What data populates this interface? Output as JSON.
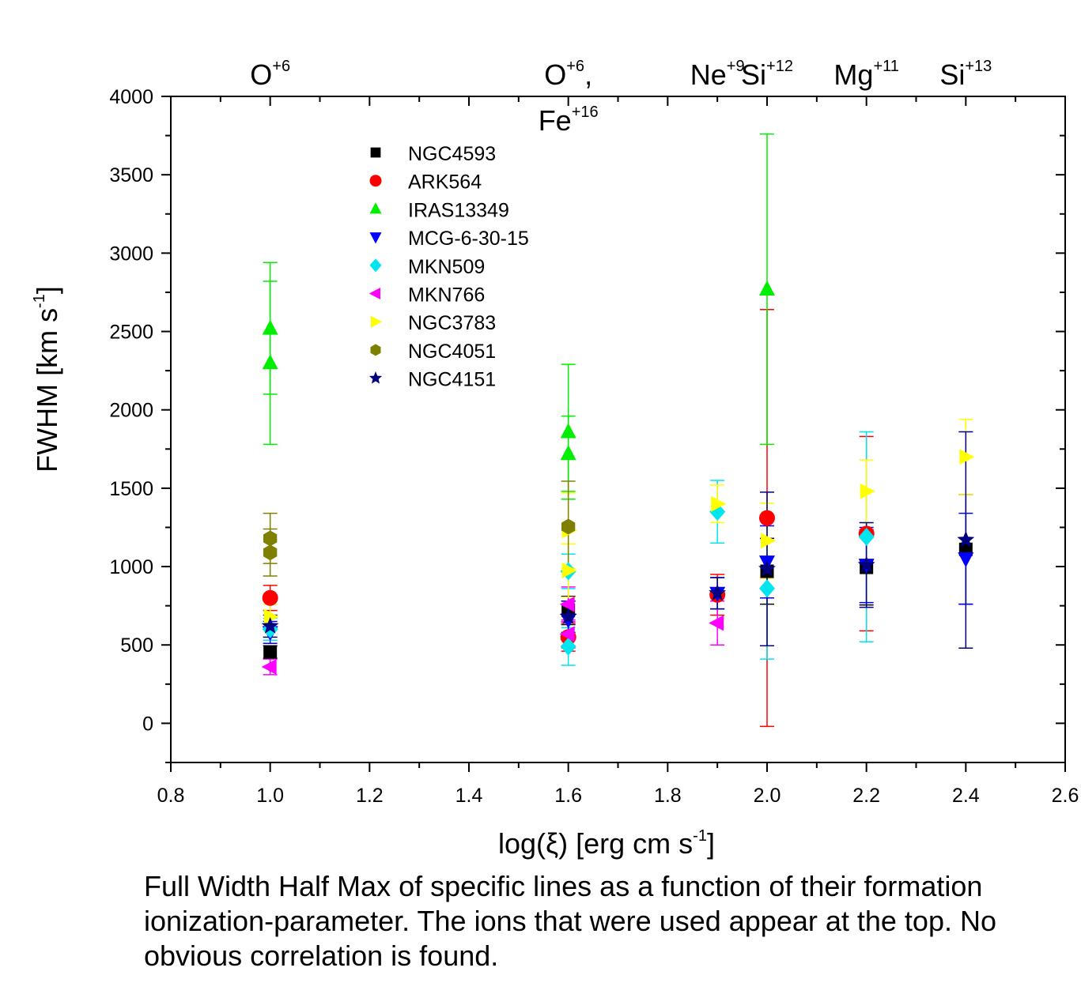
{
  "chart_data": {
    "type": "scatter",
    "xlabel": {
      "prefix": "log(ξ) [erg cm s",
      "sup": "-1",
      "suffix": "]"
    },
    "ylabel": {
      "prefix": "FWHM [km s",
      "sup": "-1",
      "suffix": "]"
    },
    "xlim": [
      0.8,
      2.6
    ],
    "ylim": [
      -250,
      4000
    ],
    "x_ticks": [
      0.8,
      1.0,
      1.2,
      1.4,
      1.6,
      1.8,
      2.0,
      2.2,
      2.4,
      2.6
    ],
    "x_tick_labels": [
      "0.8",
      "1.0",
      "1.2",
      "1.4",
      "1.6",
      "1.8",
      "2.0",
      "2.2",
      "2.4",
      "2.6"
    ],
    "y_ticks": [
      0,
      500,
      1000,
      1500,
      2000,
      2500,
      3000,
      3500,
      4000
    ],
    "y_tick_labels": [
      "0",
      "500",
      "1000",
      "1500",
      "2000",
      "2500",
      "3000",
      "3500",
      "4000"
    ],
    "grid": false,
    "legend_position": "top-left",
    "ion_labels": [
      {
        "x": 1.0,
        "lines": [
          {
            "base": "O",
            "sup": "+6"
          }
        ]
      },
      {
        "x": 1.6,
        "lines": [
          {
            "base": "O",
            "sup": "+6",
            "after": ","
          },
          {
            "base": "Fe",
            "sup": "+16"
          }
        ]
      },
      {
        "x": 1.9,
        "lines": [
          {
            "base": "Ne",
            "sup": "+9"
          }
        ]
      },
      {
        "x": 2.0,
        "lines": [
          {
            "base": "Si",
            "sup": "+12"
          }
        ]
      },
      {
        "x": 2.2,
        "lines": [
          {
            "base": "Mg",
            "sup": "+11"
          }
        ]
      },
      {
        "x": 2.4,
        "lines": [
          {
            "base": "Si",
            "sup": "+13"
          }
        ]
      }
    ],
    "series": [
      {
        "name": "NGC4593",
        "marker": "square",
        "color": "#000000",
        "points": [
          {
            "x": 1.0,
            "y": 455,
            "err": 40
          },
          {
            "x": 1.6,
            "y": 720,
            "err": 90
          },
          {
            "x": 2.0,
            "y": 970,
            "err": 210
          },
          {
            "x": 2.2,
            "y": 995,
            "err": 240
          },
          {
            "x": 2.4,
            "y": 1110,
            "err": 350
          }
        ]
      },
      {
        "name": "ARK564",
        "marker": "circle",
        "color": "#ff0000",
        "points": [
          {
            "x": 1.0,
            "y": 800,
            "err": 80
          },
          {
            "x": 1.6,
            "y": 550,
            "err": 90
          },
          {
            "x": 1.9,
            "y": 820,
            "err": 130
          },
          {
            "x": 2.0,
            "y": 1310,
            "err": 1330
          },
          {
            "x": 2.2,
            "y": 1210,
            "err": 620
          }
        ]
      },
      {
        "name": "IRAS13349",
        "marker": "triangle-up",
        "color": "#00ee00",
        "points": [
          {
            "x": 1.0,
            "y": 2520,
            "err": 420
          },
          {
            "x": 1.0,
            "y": 2300,
            "err": 520
          },
          {
            "x": 1.6,
            "y": 1860,
            "err": 430
          },
          {
            "x": 1.6,
            "y": 1720,
            "err": 240
          },
          {
            "x": 2.0,
            "y": 2770,
            "err": 990
          }
        ]
      },
      {
        "name": "MCG-6-30-15",
        "marker": "triangle-down",
        "color": "#0000ff",
        "points": [
          {
            "x": 1.0,
            "y": 580,
            "err": 70
          },
          {
            "x": 1.6,
            "y": 660,
            "err": 120
          },
          {
            "x": 1.9,
            "y": 830,
            "err": 100
          },
          {
            "x": 2.0,
            "y": 1030,
            "err": 230
          },
          {
            "x": 2.2,
            "y": 1010,
            "err": 240
          },
          {
            "x": 2.4,
            "y": 1050,
            "err": 290
          }
        ]
      },
      {
        "name": "MKN509",
        "marker": "diamond",
        "color": "#00e5ee",
        "points": [
          {
            "x": 1.0,
            "y": 600,
            "err": 70
          },
          {
            "x": 1.6,
            "y": 490,
            "err": 120
          },
          {
            "x": 1.6,
            "y": 970,
            "err": 110
          },
          {
            "x": 1.9,
            "y": 1350,
            "err": 200
          },
          {
            "x": 2.0,
            "y": 860,
            "err": 450
          },
          {
            "x": 2.2,
            "y": 1190,
            "err": 670
          }
        ]
      },
      {
        "name": "MKN766",
        "marker": "triangle-left",
        "color": "#ff00ff",
        "points": [
          {
            "x": 1.0,
            "y": 360,
            "err": 50
          },
          {
            "x": 1.6,
            "y": 760,
            "err": 110
          },
          {
            "x": 1.6,
            "y": 570,
            "err": 90
          },
          {
            "x": 1.9,
            "y": 640,
            "err": 140
          }
        ]
      },
      {
        "name": "NGC3783",
        "marker": "triangle-right",
        "color": "#ffff00",
        "points": [
          {
            "x": 1.0,
            "y": 680,
            "err": 80
          },
          {
            "x": 1.6,
            "y": 1230,
            "err": 240
          },
          {
            "x": 1.6,
            "y": 975,
            "err": 170
          },
          {
            "x": 1.9,
            "y": 1400,
            "err": 120
          },
          {
            "x": 2.0,
            "y": 1165,
            "err": 240
          },
          {
            "x": 2.2,
            "y": 1480,
            "err": 200
          },
          {
            "x": 2.4,
            "y": 1700,
            "err": 240
          }
        ]
      },
      {
        "name": "NGC4051",
        "marker": "hexagon",
        "color": "#808000",
        "points": [
          {
            "x": 1.0,
            "y": 1180,
            "err": 160
          },
          {
            "x": 1.0,
            "y": 1090,
            "err": 150
          },
          {
            "x": 1.6,
            "y": 1255,
            "err": 290
          }
        ]
      },
      {
        "name": "NGC4151",
        "marker": "star",
        "color": "#000080",
        "points": [
          {
            "x": 1.0,
            "y": 620,
            "err": 70
          },
          {
            "x": 1.6,
            "y": 680,
            "err": 100
          },
          {
            "x": 1.9,
            "y": 830,
            "err": 100
          },
          {
            "x": 2.0,
            "y": 985,
            "err": 490
          },
          {
            "x": 2.2,
            "y": 1010,
            "err": 270
          },
          {
            "x": 2.4,
            "y": 1170,
            "err": 690
          }
        ]
      }
    ]
  },
  "caption": "Full Width Half Max of specific lines as a function of their formation ionization-parameter. The ions that were used appear at the top. No obvious correlation is found."
}
